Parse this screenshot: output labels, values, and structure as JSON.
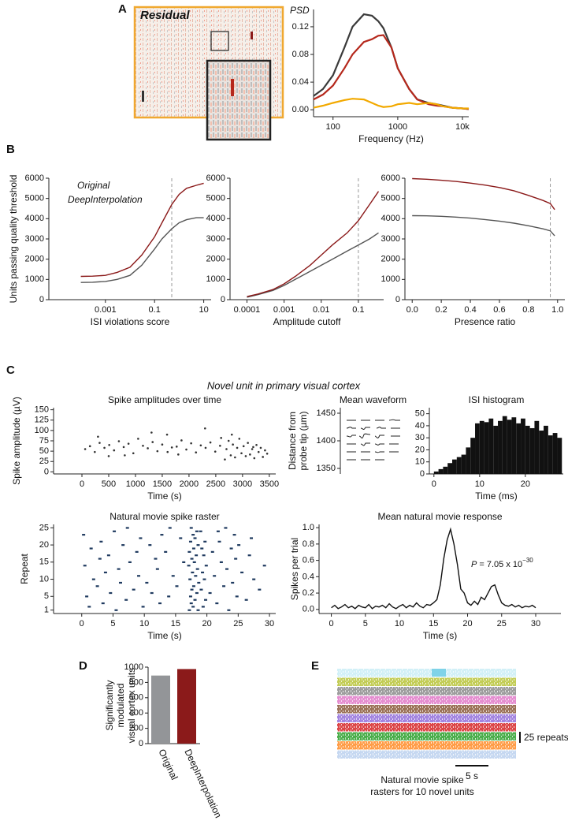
{
  "figure": {
    "panels": [
      "A",
      "B",
      "C",
      "D",
      "E"
    ],
    "residual_label": "Residual",
    "section_title": "Novel unit in primary visual cortex",
    "rasters": {
      "colors": [
        "#7fd3e8",
        "#b8c43a",
        "#8c8c8c",
        "#e07ac8",
        "#8b5a3c",
        "#9370db",
        "#d62728",
        "#2ca02c",
        "#ff8c28",
        "#5b8fd6"
      ],
      "scale_label": "25 repeats",
      "time_label": "5 s",
      "caption": [
        "Natural movie spike",
        "rasters for 10 novel units"
      ]
    }
  },
  "chart_data": [
    {
      "type": "line",
      "ylabel": "PSD",
      "xlabel": "Frequency (Hz)",
      "xlog": true,
      "x": [
        50,
        70,
        100,
        150,
        200,
        300,
        400,
        500,
        600,
        800,
        1000,
        1500,
        2000,
        3000,
        4000,
        5000,
        7000,
        10000,
        12500
      ],
      "series": [
        {
          "color": "#3a3a3a",
          "values": [
            0.02,
            0.03,
            0.05,
            0.09,
            0.12,
            0.138,
            0.136,
            0.128,
            0.118,
            0.09,
            0.06,
            0.03,
            0.015,
            0.01,
            0.008,
            0.006,
            0.003,
            0.002,
            0.001
          ]
        },
        {
          "color": "#b5281c",
          "values": [
            0.015,
            0.022,
            0.035,
            0.06,
            0.08,
            0.098,
            0.102,
            0.107,
            0.108,
            0.09,
            0.06,
            0.03,
            0.015,
            0.008,
            0.006,
            0.005,
            0.003,
            0.002,
            0.001
          ]
        },
        {
          "color": "#f2a900",
          "values": [
            0.003,
            0.006,
            0.01,
            0.014,
            0.016,
            0.015,
            0.01,
            0.006,
            0.004,
            0.005,
            0.008,
            0.01,
            0.008,
            0.01,
            0.008,
            0.005,
            0.003,
            0.002,
            0.002
          ]
        }
      ],
      "xlim": [
        50,
        12500
      ],
      "xticks": [
        100,
        1000,
        {
          "value": 10000,
          "label": "10k"
        }
      ],
      "ylim": [
        -0.01,
        0.145
      ],
      "yticks": [
        {
          "value": 0,
          "label": "0.00"
        },
        {
          "value": 0.04,
          "label": "0.04"
        },
        {
          "value": 0.08,
          "label": "0.08"
        },
        {
          "value": 0.12,
          "label": "0.12"
        }
      ]
    },
    {
      "type": "line",
      "ylabel": "Units passing quality threshold",
      "xlabel": "ISI violations score",
      "xlog": true,
      "x": [
        0.0001,
        0.0003,
        0.001,
        0.003,
        0.01,
        0.03,
        0.1,
        0.2,
        0.5,
        1,
        2,
        5,
        10
      ],
      "series": [
        {
          "name": "Original",
          "color": "#555555",
          "values": [
            850,
            860,
            900,
            1000,
            1200,
            1700,
            2500,
            3000,
            3500,
            3800,
            3950,
            4050,
            4050
          ]
        },
        {
          "name": "DeepInterpolation",
          "color": "#8b1a1a",
          "values": [
            1150,
            1160,
            1200,
            1350,
            1600,
            2200,
            3100,
            3800,
            4700,
            5200,
            5500,
            5650,
            5750
          ]
        }
      ],
      "vline": 0.5,
      "xlim": [
        5e-06,
        20
      ],
      "xticks": [
        0.001,
        0.1,
        10
      ],
      "ylim": [
        0,
        6000
      ],
      "yticks": [
        0,
        1000,
        2000,
        3000,
        4000,
        5000,
        6000
      ]
    },
    {
      "type": "line",
      "xlabel": "Amplitude cutoff",
      "xlog": true,
      "x": [
        0.0001,
        0.0002,
        0.0005,
        0.001,
        0.002,
        0.005,
        0.01,
        0.02,
        0.05,
        0.1,
        0.2,
        0.35
      ],
      "series": [
        {
          "color": "#555555",
          "values": [
            120,
            250,
            450,
            700,
            1000,
            1400,
            1700,
            2000,
            2400,
            2700,
            3000,
            3300
          ]
        },
        {
          "color": "#8b1a1a",
          "values": [
            150,
            280,
            500,
            780,
            1150,
            1700,
            2200,
            2700,
            3300,
            3900,
            4700,
            5350
          ]
        }
      ],
      "vline": 0.1,
      "xlim": [
        3.5e-05,
        0.48
      ],
      "xticks": [
        0.0001,
        0.001,
        0.01,
        0.1
      ],
      "ylim": [
        0,
        6000
      ],
      "yticks": [
        0,
        1000,
        2000,
        3000,
        4000,
        5000,
        6000
      ]
    },
    {
      "type": "line",
      "xlabel": "Presence ratio",
      "x": [
        0,
        0.1,
        0.2,
        0.3,
        0.4,
        0.5,
        0.6,
        0.7,
        0.8,
        0.9,
        0.95,
        0.98
      ],
      "series": [
        {
          "color": "#555555",
          "values": [
            4150,
            4140,
            4120,
            4080,
            4030,
            3960,
            3880,
            3780,
            3650,
            3500,
            3400,
            3150
          ]
        },
        {
          "color": "#8b1a1a",
          "values": [
            5980,
            5950,
            5900,
            5840,
            5760,
            5660,
            5540,
            5380,
            5150,
            4900,
            4750,
            4450
          ]
        }
      ],
      "vline": 0.95,
      "xlim": [
        -0.05,
        1.05
      ],
      "xticks": [
        {
          "value": 0,
          "label": "0.0"
        },
        {
          "value": 0.2,
          "label": "0.2"
        },
        {
          "value": 0.4,
          "label": "0.4"
        },
        {
          "value": 0.6,
          "label": "0.6"
        },
        {
          "value": 0.8,
          "label": "0.8"
        },
        {
          "value": 1,
          "label": "1.0"
        }
      ],
      "ylim": [
        0,
        6000
      ],
      "yticks": [
        0,
        1000,
        2000,
        3000,
        4000,
        5000,
        6000
      ]
    },
    {
      "type": "scatter",
      "title": "Spike amplitudes over time",
      "ylabel": "Spike amplitude (µV)",
      "xlabel": "Time (s)",
      "color": "#333333",
      "x": [
        60,
        150,
        240,
        330,
        420,
        510,
        600,
        690,
        780,
        870,
        960,
        1050,
        1140,
        1230,
        1320,
        1410,
        1500,
        1590,
        1680,
        1770,
        1860,
        1950,
        2040,
        2130,
        2220,
        2310,
        2400,
        2490,
        2580,
        2670,
        2700,
        2740,
        2780,
        2820,
        2860,
        2900,
        2940,
        2980,
        3020,
        3060,
        3100,
        3140,
        3180,
        3220,
        3260,
        3300,
        3340,
        3380,
        3420,
        3460,
        300,
        800,
        1300,
        1800,
        2300,
        2800,
        3200,
        500,
        1600,
        2600
      ],
      "values": [
        55,
        62,
        48,
        70,
        58,
        65,
        52,
        74,
        60,
        68,
        45,
        80,
        63,
        57,
        72,
        50,
        66,
        90,
        59,
        61,
        76,
        54,
        69,
        47,
        64,
        58,
        71,
        49,
        63,
        30,
        55,
        75,
        40,
        66,
        35,
        58,
        80,
        45,
        62,
        38,
        70,
        42,
        55,
        33,
        65,
        48,
        58,
        36,
        52,
        44,
        85,
        40,
        95,
        42,
        105,
        90,
        60,
        38,
        48,
        82
      ],
      "xlim": [
        -530,
        3620
      ],
      "xticks": [
        0,
        500,
        1000,
        1500,
        2000,
        2500,
        3000,
        3500
      ],
      "ylim": [
        -5,
        155
      ],
      "yticks": [
        0,
        25,
        50,
        75,
        100,
        125,
        150
      ]
    },
    {
      "type": "waveform",
      "title": "Mean waveform",
      "ylabel": [
        "Distance from",
        "probe tip (µm)"
      ],
      "ylim": [
        1340,
        1460
      ],
      "yticks": [
        1350,
        1400,
        1450
      ]
    },
    {
      "type": "histogram",
      "title": "ISI histogram",
      "xlabel": "Time (ms)",
      "color": "#111111",
      "bins": [
        0,
        1,
        2,
        3,
        4,
        5,
        6,
        7,
        8,
        9,
        10,
        11,
        12,
        13,
        14,
        15,
        16,
        17,
        18,
        19,
        20,
        21,
        22,
        23,
        24,
        25,
        26,
        27,
        28
      ],
      "values": [
        2,
        4,
        6,
        9,
        12,
        14,
        16,
        22,
        30,
        42,
        44,
        43,
        46,
        40,
        44,
        48,
        45,
        47,
        42,
        46,
        40,
        38,
        44,
        36,
        40,
        32,
        34,
        30
      ],
      "xlim": [
        -1,
        28.3
      ],
      "xticks": [
        0,
        10,
        20
      ],
      "ylim": [
        0,
        55
      ],
      "yticks": [
        0,
        10,
        20,
        30,
        40,
        50
      ]
    },
    {
      "type": "raster",
      "title": "Natural movie spike raster",
      "ylabel": "Repeat",
      "xlabel": "Time (s)",
      "color": "#1f3a5f",
      "x": [
        5.5,
        17.2,
        18.6,
        23.5,
        1.2,
        9.8,
        17.8,
        19.4,
        3.4,
        12.5,
        17.5,
        21.6,
        7.1,
        18.1,
        19.8,
        26.3,
        0.8,
        13.9,
        17.4,
        24.8,
        4.6,
        11.2,
        18.4,
        20.5,
        8.3,
        17.6,
        19.1,
        28.4,
        2.5,
        15.2,
        17.9,
        22.7,
        6.2,
        10.4,
        18.7,
        24.1,
        1.9,
        17.3,
        19.6,
        27.5,
        9.1,
        14.6,
        18.2,
        21.2,
        3.8,
        17.7,
        19.3,
        25.6,
        5.9,
        12.1,
        18.5,
        23.2,
        0.5,
        17.1,
        19.9,
        29.2,
        7.7,
        16.3,
        18,
        22.3,
        2.9,
        11.8,
        17.6,
        24.6,
        4.3,
        18.3,
        19.5,
        26.8,
        8.8,
        13.4,
        17.2,
        20.9,
        1.5,
        17.9,
        19.2,
        23.9,
        6.6,
        10.9,
        18.6,
        25.1,
        3.1,
        17.4,
        19.7,
        22,
        9.4,
        15.8,
        18.1,
        27.1,
        0.3,
        12.8,
        17.8,
        24.4,
        5.2,
        18.4,
        19,
        21.8,
        7.3,
        14.1,
        17.5,
        23
      ],
      "values": [
        1,
        1,
        1,
        1,
        2,
        2,
        2,
        2,
        3,
        3,
        3,
        3,
        4,
        4,
        4,
        4,
        5,
        5,
        5,
        5,
        6,
        6,
        6,
        6,
        7,
        7,
        7,
        7,
        8,
        8,
        8,
        8,
        9,
        9,
        9,
        9,
        10,
        10,
        10,
        10,
        11,
        11,
        11,
        11,
        12,
        12,
        12,
        12,
        13,
        13,
        13,
        13,
        14,
        14,
        14,
        14,
        15,
        15,
        15,
        15,
        16,
        16,
        16,
        16,
        17,
        17,
        17,
        17,
        18,
        18,
        18,
        18,
        19,
        19,
        19,
        19,
        20,
        20,
        20,
        20,
        21,
        21,
        21,
        21,
        22,
        22,
        22,
        22,
        23,
        23,
        23,
        23,
        24,
        24,
        24,
        24,
        25,
        25,
        25,
        25
      ],
      "xlim": [
        -4.5,
        31
      ],
      "xticks": [
        0,
        5,
        10,
        15,
        20,
        25,
        30
      ],
      "ylim": [
        0,
        26
      ],
      "yticks": [
        1,
        5,
        10,
        15,
        20,
        25
      ]
    },
    {
      "type": "line",
      "title": "Mean natural movie response",
      "ylabel": "Spikes per trial",
      "xlabel": "Time (s)",
      "annotation": [
        "P",
        " = 7.05 x 10",
        "−30"
      ],
      "x": [
        0,
        0.5,
        1,
        1.5,
        2,
        2.5,
        3,
        3.5,
        4,
        4.5,
        5,
        5.5,
        6,
        6.5,
        7,
        7.5,
        8,
        8.5,
        9,
        9.5,
        10,
        10.5,
        11,
        11.5,
        12,
        12.5,
        13,
        13.5,
        14,
        14.5,
        15,
        15.5,
        16,
        16.5,
        17,
        17.5,
        18,
        18.5,
        19,
        19.5,
        20,
        20.5,
        21,
        21.5,
        22,
        22.5,
        23,
        23.5,
        24,
        24.5,
        25,
        25.5,
        26,
        26.5,
        27,
        27.5,
        28,
        28.5,
        29,
        29.5,
        30
      ],
      "series": [
        {
          "color": "#111111",
          "values": [
            0.02,
            0.05,
            0.01,
            0.03,
            0.06,
            0.02,
            0.04,
            0.01,
            0.05,
            0.03,
            0.02,
            0.06,
            0.01,
            0.04,
            0.03,
            0.05,
            0.02,
            0.07,
            0.03,
            0.01,
            0.04,
            0.06,
            0.02,
            0.05,
            0.03,
            0.08,
            0.04,
            0.02,
            0.06,
            0.05,
            0.08,
            0.12,
            0.3,
            0.62,
            0.85,
            0.98,
            0.8,
            0.55,
            0.25,
            0.2,
            0.08,
            0.05,
            0.1,
            0.06,
            0.15,
            0.12,
            0.2,
            0.28,
            0.3,
            0.18,
            0.08,
            0.05,
            0.04,
            0.06,
            0.03,
            0.05,
            0.02,
            0.04,
            0.03,
            0.05,
            0.02
          ]
        }
      ],
      "xlim": [
        -1.8,
        33.7
      ],
      "xticks": [
        0,
        5,
        10,
        15,
        20,
        25,
        30
      ],
      "ylim": [
        -0.05,
        1.04
      ],
      "yticks": [
        {
          "value": 0,
          "label": "0.0"
        },
        {
          "value": 0.2,
          "label": "0.2"
        },
        {
          "value": 0.4,
          "label": "0.4"
        },
        {
          "value": 0.6,
          "label": "0.6"
        },
        {
          "value": 0.8,
          "label": "0.8"
        },
        {
          "value": 1,
          "label": "1.0"
        }
      ]
    },
    {
      "type": "bar",
      "ylabel": [
        "Significantly",
        "modulated",
        "visual cortex units"
      ],
      "categories": [
        "Original",
        "DeepInterpolation"
      ],
      "values": [
        890,
        975
      ],
      "colors": [
        "#939598",
        "#8b1a1a"
      ],
      "ylim": [
        0,
        1000
      ],
      "yticks": [
        0,
        200,
        400,
        600,
        800,
        1000
      ]
    }
  ]
}
